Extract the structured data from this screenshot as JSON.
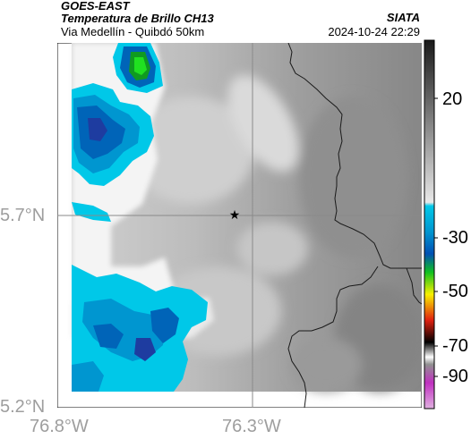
{
  "header": {
    "satellite": "GOES-EAST",
    "product": "Temperatura de Brillo CH13",
    "region": "Via Medellín - Quibdó 50km",
    "source": "SIATA",
    "timestamp": "2024-10-24 22:29"
  },
  "axes": {
    "lat_ticks": [
      "5.7°N",
      "5.2°N"
    ],
    "lon_ticks": [
      "76.8°W",
      "76.3°W"
    ]
  },
  "colorbar": {
    "labels": [
      "20",
      "-30",
      "-50",
      "-70",
      "-90"
    ],
    "colors": {
      "gray_dark": "#1a1a1a",
      "gray_light": "#e8e8e8",
      "cyan": "#00c8e8",
      "blue": "#0050b4",
      "green": "#10c020",
      "yellow": "#f8f000",
      "red": "#e02010",
      "black": "#000000",
      "magenta": "#c030c0"
    }
  },
  "marker": {
    "symbol": "★",
    "name": "city-marker"
  }
}
